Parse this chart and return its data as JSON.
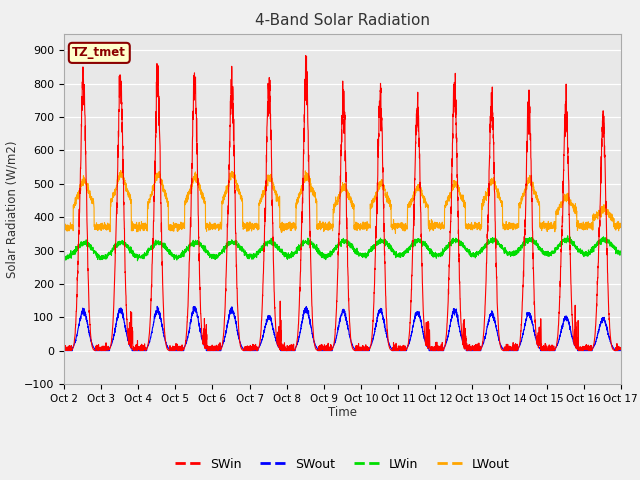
{
  "title": "4-Band Solar Radiation",
  "ylabel": "Solar Radiation (W/m2)",
  "xlabel": "Time",
  "annotation": "TZ_tmet",
  "ylim": [
    -100,
    950
  ],
  "yticks": [
    -100,
    0,
    100,
    200,
    300,
    400,
    500,
    600,
    700,
    800,
    900
  ],
  "x_labels": [
    "Oct 2",
    "Oct 3",
    "Oct 4",
    "Oct 5",
    "Oct 6",
    "Oct 7",
    "Oct 8",
    "Oct 9",
    "Oct 10",
    "Oct 11",
    "Oct 12",
    "Oct 13",
    "Oct 14",
    "Oct 15",
    "Oct 16",
    "Oct 17"
  ],
  "colors": {
    "SWin": "#ff0000",
    "SWout": "#0000ff",
    "LWin": "#00dd00",
    "LWout": "#ffa500"
  },
  "background_color": "#f0f0f0",
  "plot_bg_color": "#e8e8e8",
  "title_fontsize": 11,
  "n_days": 15,
  "pts_per_day": 288,
  "sw_peaks": [
    805,
    803,
    800,
    800,
    795,
    780,
    830,
    750,
    757,
    735,
    770,
    748,
    730,
    728,
    685
  ],
  "swout_peaks": [
    120,
    122,
    120,
    125,
    122,
    100,
    125,
    118,
    120,
    115,
    120,
    112,
    110,
    100,
    95
  ],
  "lwin_base": 300,
  "lwout_night": 370,
  "lwout_day_peaks": [
    510,
    530,
    525,
    520,
    530,
    520,
    525,
    490,
    500,
    490,
    500,
    510,
    510,
    460,
    420
  ]
}
